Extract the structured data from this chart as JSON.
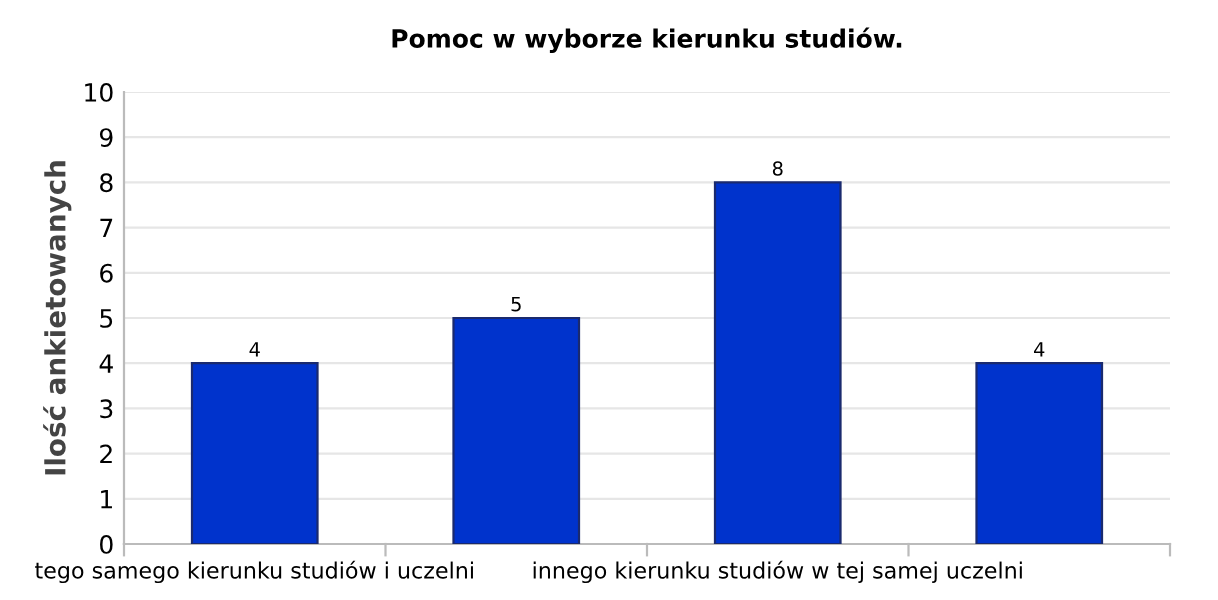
{
  "chart_data": {
    "type": "bar",
    "title": "Pomoc w wyborze kierunku studiów.",
    "ylabel": "Ilość ankietowanych",
    "categories": [
      "tego samego kierunku studiów i uczelni",
      null,
      "innego kierunku studiów w tej samej uczelni",
      null
    ],
    "values": [
      4,
      5,
      8,
      4
    ],
    "color": "#0033cc",
    "ylim": [
      0,
      10
    ],
    "yticks": [
      0,
      1,
      2,
      3,
      4,
      5,
      6,
      7,
      8,
      9,
      10
    ],
    "grid": "y",
    "data_labels": true,
    "legend": false
  }
}
